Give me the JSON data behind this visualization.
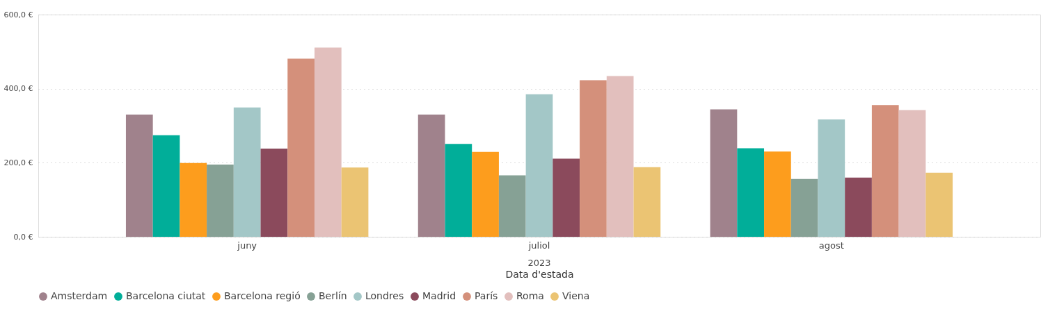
{
  "chart_data": {
    "type": "bar",
    "xlabel": "Data d'estada",
    "annotations": [
      "2023"
    ],
    "categories": [
      "juny",
      "juliol",
      "agost"
    ],
    "series": [
      {
        "name": "Amsterdam",
        "color": "#a0828c",
        "values": [
          330,
          330,
          344
        ]
      },
      {
        "name": "Barcelona ciutat",
        "color": "#01ae99",
        "values": [
          274,
          251,
          239
        ]
      },
      {
        "name": "Barcelona regió",
        "color": "#fd9d1d",
        "values": [
          199,
          229,
          230
        ]
      },
      {
        "name": "Berlín",
        "color": "#86a195",
        "values": [
          195,
          166,
          156
        ]
      },
      {
        "name": "Londres",
        "color": "#a3c7c7",
        "values": [
          349,
          385,
          317
        ]
      },
      {
        "name": "Madrid",
        "color": "#8b4a5c",
        "values": [
          238,
          211,
          160
        ]
      },
      {
        "name": "París",
        "color": "#d4907b",
        "values": [
          481,
          423,
          356
        ]
      },
      {
        "name": "Roma",
        "color": "#e2bfbd",
        "values": [
          511,
          434,
          342
        ]
      },
      {
        "name": "Viena",
        "color": "#ebc473",
        "values": [
          187,
          188,
          173
        ]
      }
    ],
    "ylim": [
      0,
      600
    ],
    "yticks": [
      {
        "value": 0,
        "label": "0,0 €"
      },
      {
        "value": 200,
        "label": "200,0 €"
      },
      {
        "value": 400,
        "label": "400,0 €"
      },
      {
        "value": 600,
        "label": "600,0 €"
      }
    ],
    "grid": "y",
    "legend": "bottom"
  }
}
